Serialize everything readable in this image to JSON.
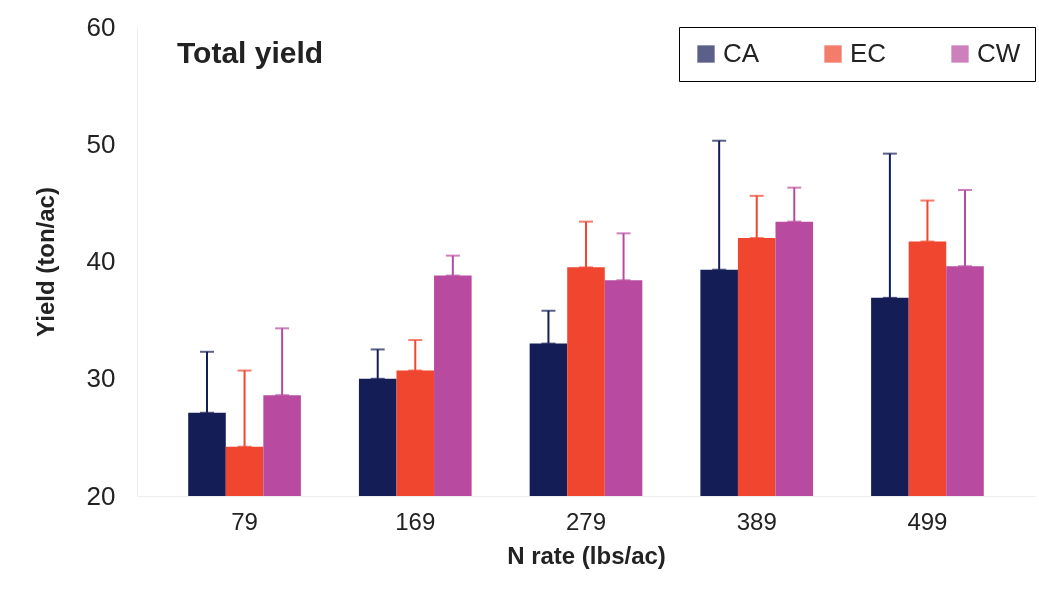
{
  "chart_data": {
    "type": "bar",
    "title": "Total yield",
    "xlabel": "N rate (lbs/ac)",
    "ylabel": "Yield (ton/ac)",
    "categories": [
      "79",
      "169",
      "279",
      "389",
      "499"
    ],
    "series": [
      {
        "name": "CA",
        "color": "#141d56",
        "values": [
          27.1,
          30.0,
          33.0,
          39.3,
          36.9
        ],
        "errors": [
          [
            27.1,
            32.3
          ],
          [
            30.0,
            32.5
          ],
          [
            33.0,
            35.8
          ],
          [
            39.3,
            50.3
          ],
          [
            36.9,
            49.2
          ]
        ]
      },
      {
        "name": "EC",
        "color": "#f0452e",
        "values": [
          24.2,
          30.7,
          39.5,
          42.0,
          41.7
        ],
        "errors": [
          [
            24.2,
            30.7
          ],
          [
            30.7,
            33.3
          ],
          [
            39.5,
            43.4
          ],
          [
            42.0,
            45.6
          ],
          [
            41.7,
            45.2
          ]
        ]
      },
      {
        "name": "CW",
        "color": "#b84aa0",
        "values": [
          28.6,
          38.8,
          38.4,
          43.4,
          39.6
        ],
        "errors": [
          [
            28.6,
            34.3
          ],
          [
            38.8,
            40.5
          ],
          [
            38.4,
            42.4
          ],
          [
            43.4,
            46.3
          ],
          [
            39.6,
            46.1
          ]
        ]
      }
    ],
    "ylim": [
      20,
      60
    ],
    "yticks": [
      20,
      30,
      40,
      50,
      60
    ],
    "grid": false,
    "legend": "top right"
  }
}
